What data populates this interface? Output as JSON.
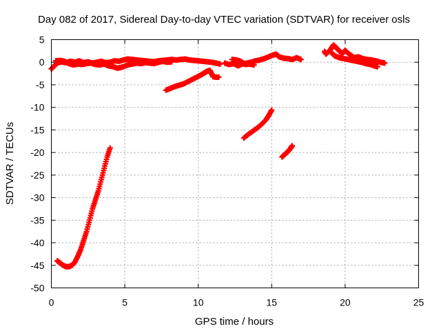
{
  "chart_data": {
    "type": "scatter",
    "title": "Day 082 of 2017, Sidereal Day-to-day VTEC variation (SDTVAR) for receiver osls",
    "xlabel": "GPS time / hours",
    "ylabel": "SDTVAR / TECUs",
    "xlim": [
      0,
      25
    ],
    "ylim": [
      -50,
      5
    ],
    "xticks": [
      0,
      5,
      10,
      15,
      20,
      25
    ],
    "yticks": [
      -50,
      -45,
      -40,
      -35,
      -30,
      -25,
      -20,
      -15,
      -10,
      -5,
      0,
      5
    ],
    "grid": true,
    "marker": "plus",
    "color": "#ff0000",
    "series": [
      {
        "points": [
          [
            0.0,
            -1.5
          ],
          [
            0.2,
            -0.8
          ],
          [
            0.4,
            -0.2
          ],
          [
            0.7,
            0.1
          ],
          [
            1.0,
            -0.1
          ],
          [
            1.3,
            0.2
          ],
          [
            1.6,
            0.0
          ],
          [
            1.9,
            0.3
          ],
          [
            2.2,
            -0.1
          ],
          [
            2.5,
            0.1
          ],
          [
            2.8,
            -0.2
          ],
          [
            3.1,
            0.0
          ],
          [
            3.4,
            0.2
          ],
          [
            3.7,
            -0.1
          ],
          [
            4.0,
            0.0
          ],
          [
            4.3,
            0.3
          ],
          [
            4.6,
            0.2
          ],
          [
            4.9,
            0.5
          ],
          [
            5.2,
            0.7
          ],
          [
            5.5,
            0.6
          ],
          [
            5.8,
            0.5
          ],
          [
            6.1,
            0.4
          ],
          [
            6.4,
            0.3
          ],
          [
            6.7,
            0.2
          ],
          [
            7.0,
            0.1
          ],
          [
            7.3,
            0.3
          ],
          [
            7.6,
            0.4
          ],
          [
            7.9,
            0.5
          ],
          [
            8.2,
            0.6
          ],
          [
            8.5,
            0.5
          ],
          [
            8.8,
            0.6
          ],
          [
            9.1,
            0.7
          ],
          [
            9.4,
            0.5
          ],
          [
            9.7,
            0.4
          ],
          [
            10.0,
            0.3
          ],
          [
            10.3,
            0.2
          ],
          [
            10.6,
            0.1
          ],
          [
            10.9,
            0.0
          ],
          [
            11.2,
            -0.2
          ],
          [
            11.5,
            -0.4
          ]
        ]
      },
      {
        "points": [
          [
            0.3,
            0.3
          ],
          [
            0.6,
            0.4
          ],
          [
            0.9,
            0.2
          ],
          [
            1.2,
            -0.3
          ],
          [
            1.5,
            -0.6
          ],
          [
            1.8,
            -0.4
          ],
          [
            2.1,
            -0.5
          ],
          [
            2.4,
            -0.3
          ],
          [
            2.7,
            -0.2
          ],
          [
            3.0,
            -0.5
          ],
          [
            3.3,
            -0.6
          ],
          [
            3.6,
            -0.4
          ],
          [
            3.9,
            -0.8
          ],
          [
            4.2,
            -1.0
          ],
          [
            4.5,
            -1.3
          ],
          [
            4.7,
            -1.2
          ],
          [
            4.9,
            -1.0
          ],
          [
            5.2,
            -0.6
          ],
          [
            5.5,
            -0.4
          ],
          [
            5.8,
            -0.2
          ],
          [
            6.1,
            -0.3
          ],
          [
            6.4,
            -0.1
          ],
          [
            6.7,
            -0.2
          ],
          [
            7.0,
            -0.3
          ],
          [
            7.3,
            0.0
          ],
          [
            7.6,
            0.2
          ],
          [
            7.9,
            0.0
          ],
          [
            8.2,
            0.1
          ]
        ]
      },
      {
        "points": [
          [
            7.8,
            -6.2
          ],
          [
            8.1,
            -5.8
          ],
          [
            8.4,
            -5.4
          ],
          [
            8.7,
            -5.1
          ],
          [
            9.0,
            -4.8
          ],
          [
            9.3,
            -4.3
          ],
          [
            9.6,
            -3.8
          ],
          [
            9.9,
            -3.3
          ],
          [
            10.2,
            -2.8
          ],
          [
            10.4,
            -2.4
          ],
          [
            10.6,
            -2.0
          ],
          [
            10.8,
            -1.8
          ],
          [
            11.0,
            -3.2
          ],
          [
            11.2,
            -3.3
          ],
          [
            11.4,
            -3.3
          ]
        ]
      },
      {
        "points": [
          [
            0.4,
            -44.0
          ],
          [
            0.6,
            -44.5
          ],
          [
            0.8,
            -45.0
          ],
          [
            1.0,
            -45.3
          ],
          [
            1.2,
            -45.3
          ],
          [
            1.4,
            -45.0
          ],
          [
            1.6,
            -44.3
          ],
          [
            1.8,
            -43.0
          ],
          [
            2.0,
            -41.5
          ],
          [
            2.2,
            -39.5
          ],
          [
            2.4,
            -37.5
          ],
          [
            2.6,
            -35.0
          ],
          [
            2.8,
            -32.5
          ],
          [
            3.0,
            -30.5
          ],
          [
            3.2,
            -28.5
          ],
          [
            3.4,
            -26.0
          ],
          [
            3.6,
            -23.5
          ],
          [
            3.8,
            -21.0
          ],
          [
            4.0,
            -19.0
          ]
        ]
      },
      {
        "points": [
          [
            11.8,
            -0.2
          ],
          [
            12.1,
            -0.5
          ],
          [
            12.4,
            -0.3
          ],
          [
            12.7,
            -0.8
          ],
          [
            13.0,
            -0.4
          ],
          [
            13.3,
            -0.2
          ],
          [
            13.6,
            0.0
          ],
          [
            13.9,
            0.3
          ],
          [
            14.2,
            0.5
          ],
          [
            14.5,
            0.8
          ],
          [
            14.8,
            1.2
          ],
          [
            15.1,
            1.6
          ],
          [
            15.3,
            1.8
          ],
          [
            15.5,
            1.2
          ],
          [
            15.8,
            0.9
          ],
          [
            16.1,
            0.8
          ],
          [
            16.4,
            0.6
          ],
          [
            16.7,
            1.0
          ],
          [
            17.0,
            0.6
          ]
        ]
      },
      {
        "points": [
          [
            12.3,
            0.6
          ],
          [
            12.6,
            0.5
          ],
          [
            12.9,
            0.2
          ],
          [
            13.2,
            -0.5
          ],
          [
            13.5,
            -0.4
          ],
          [
            13.8,
            -0.6
          ]
        ]
      },
      {
        "points": [
          [
            13.1,
            -16.8
          ],
          [
            13.4,
            -16.0
          ],
          [
            13.7,
            -15.3
          ],
          [
            14.0,
            -14.6
          ],
          [
            14.3,
            -13.8
          ],
          [
            14.6,
            -12.8
          ],
          [
            14.8,
            -11.8
          ],
          [
            15.0,
            -10.6
          ]
        ]
      },
      {
        "points": [
          [
            15.7,
            -21.0
          ],
          [
            15.9,
            -20.4
          ],
          [
            16.1,
            -19.8
          ],
          [
            16.3,
            -19.0
          ],
          [
            16.4,
            -18.5
          ]
        ]
      },
      {
        "points": [
          [
            18.6,
            2.4
          ],
          [
            18.7,
            1.8
          ],
          [
            19.0,
            2.8
          ],
          [
            19.2,
            3.8
          ],
          [
            19.4,
            3.2
          ],
          [
            19.6,
            2.5
          ],
          [
            19.8,
            1.9
          ],
          [
            20.0,
            2.6
          ],
          [
            20.2,
            2.0
          ],
          [
            20.4,
            1.5
          ],
          [
            20.6,
            1.0
          ],
          [
            20.9,
            1.2
          ],
          [
            21.2,
            0.8
          ],
          [
            21.5,
            0.6
          ],
          [
            21.8,
            0.5
          ],
          [
            22.1,
            0.3
          ],
          [
            22.4,
            0.0
          ],
          [
            22.7,
            -0.2
          ]
        ]
      },
      {
        "points": [
          [
            19.1,
            2.0
          ],
          [
            19.3,
            1.4
          ],
          [
            19.6,
            1.0
          ],
          [
            19.9,
            0.8
          ],
          [
            20.2,
            0.6
          ],
          [
            20.5,
            0.4
          ],
          [
            20.8,
            0.2
          ],
          [
            21.1,
            0.0
          ],
          [
            21.4,
            -0.3
          ],
          [
            21.7,
            -0.5
          ],
          [
            22.0,
            -0.8
          ],
          [
            22.2,
            -1.0
          ]
        ]
      }
    ]
  }
}
